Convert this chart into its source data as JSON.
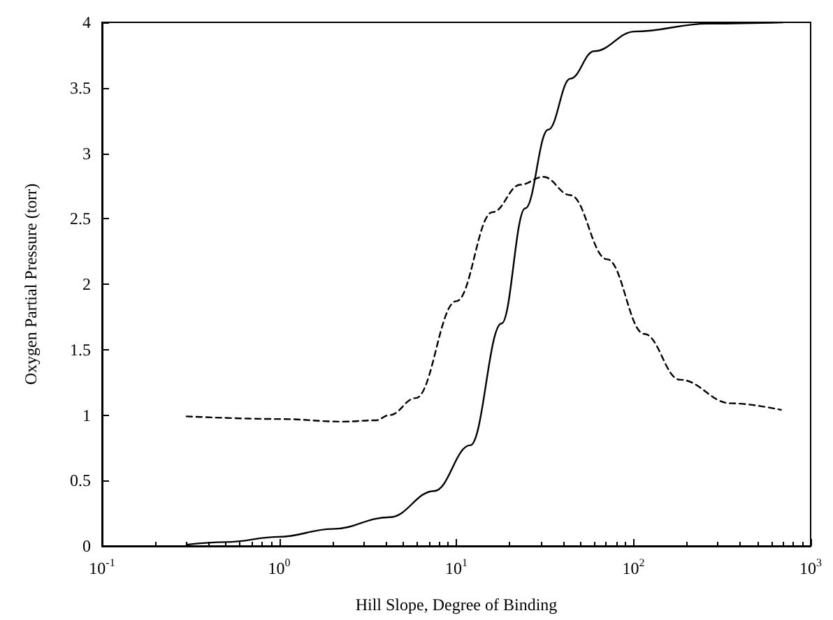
{
  "chart_data": {
    "type": "line",
    "xlabel": "Hill Slope, Degree of Binding",
    "ylabel": "Oxygen Partial Pressure (torr)",
    "log": "x",
    "xlim": [
      0.1,
      1000
    ],
    "xticks": [
      {
        "value": 0.1,
        "label": "10$^{-1}$"
      },
      {
        "value": 1,
        "label": "10$^{0}$"
      },
      {
        "value": 10,
        "label": "10$^{1}$"
      },
      {
        "value": 100,
        "label": "10$^{2}$"
      },
      {
        "value": 1000,
        "label": "10$^{3}$"
      }
    ],
    "ylim": [
      0,
      4
    ],
    "yticks": [
      0,
      0.5,
      1,
      1.5,
      2,
      2.5,
      3,
      3.5,
      4
    ],
    "grid": false,
    "marker": "none",
    "series": [
      {
        "color": "#000000",
        "line_style": "solid",
        "x": [
          0.3,
          0.5,
          1,
          2,
          4.2,
          7.5,
          12,
          18,
          24.5,
          33,
          44,
          60,
          102,
          263,
          700
        ],
        "values": [
          0.01,
          0.03,
          0.07,
          0.13,
          0.22,
          0.42,
          0.77,
          1.7,
          2.58,
          3.18,
          3.57,
          3.78,
          3.93,
          3.99,
          4.0
        ]
      },
      {
        "color": "#000000",
        "line_style": "dashed",
        "x": [
          0.3,
          1,
          2.3,
          3.5,
          4.2,
          5.9,
          10,
          16,
          23,
          31,
          44,
          71,
          115,
          183,
          355,
          680
        ],
        "values": [
          0.99,
          0.97,
          0.95,
          0.96,
          1.0,
          1.13,
          1.87,
          2.55,
          2.76,
          2.82,
          2.68,
          2.19,
          1.62,
          1.27,
          1.09,
          1.04
        ]
      }
    ]
  }
}
